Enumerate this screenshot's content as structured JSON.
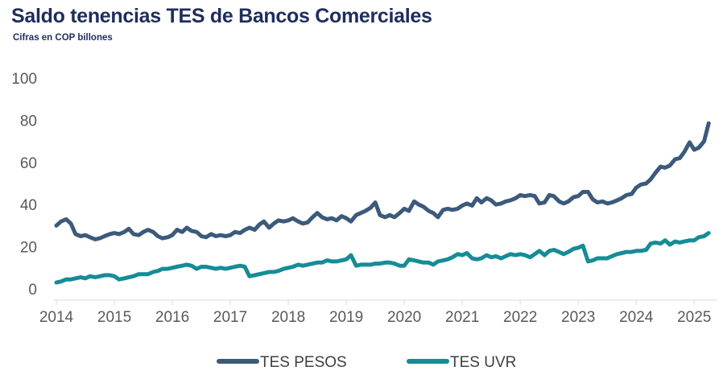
{
  "chart_data": {
    "type": "line",
    "title": "Saldo tenencias TES de Bancos Comerciales",
    "subtitle": "Cifras en COP billones",
    "xlabel": "",
    "ylabel": "",
    "ylim": [
      0,
      100
    ],
    "yticks": [
      "0",
      "20",
      "40",
      "60",
      "80",
      "100"
    ],
    "xlim": [
      2014,
      2025.33
    ],
    "xticks": [
      "2014",
      "2015",
      "2016",
      "2017",
      "2018",
      "2019",
      "2020",
      "2021",
      "2022",
      "2023",
      "2024",
      "2025"
    ],
    "grid": false,
    "legend_position": "bottom",
    "series": [
      {
        "name": "TES PESOS",
        "color": "#3c5a7a",
        "points": [
          [
            2014.0,
            30
          ],
          [
            2014.08,
            32
          ],
          [
            2014.17,
            33
          ],
          [
            2014.25,
            31
          ],
          [
            2014.33,
            26
          ],
          [
            2014.42,
            25
          ],
          [
            2014.5,
            25.5
          ],
          [
            2014.58,
            24.5
          ],
          [
            2014.67,
            23.5
          ],
          [
            2014.75,
            24
          ],
          [
            2014.83,
            25
          ],
          [
            2014.92,
            26
          ],
          [
            2015.0,
            26.5
          ],
          [
            2015.08,
            26
          ],
          [
            2015.17,
            27
          ],
          [
            2015.25,
            28.5
          ],
          [
            2015.33,
            26
          ],
          [
            2015.42,
            25.5
          ],
          [
            2015.5,
            27
          ],
          [
            2015.58,
            28
          ],
          [
            2015.67,
            27
          ],
          [
            2015.75,
            25
          ],
          [
            2015.83,
            24
          ],
          [
            2015.92,
            24.5
          ],
          [
            2016.0,
            25.5
          ],
          [
            2016.08,
            28
          ],
          [
            2016.17,
            27
          ],
          [
            2016.25,
            29
          ],
          [
            2016.33,
            27.5
          ],
          [
            2016.42,
            27
          ],
          [
            2016.5,
            25
          ],
          [
            2016.58,
            24.5
          ],
          [
            2016.67,
            26
          ],
          [
            2016.75,
            25
          ],
          [
            2016.83,
            25.5
          ],
          [
            2016.92,
            25
          ],
          [
            2017.0,
            25.5
          ],
          [
            2017.08,
            27
          ],
          [
            2017.17,
            26.5
          ],
          [
            2017.25,
            28
          ],
          [
            2017.33,
            29
          ],
          [
            2017.42,
            28
          ],
          [
            2017.5,
            30.5
          ],
          [
            2017.58,
            32
          ],
          [
            2017.67,
            29
          ],
          [
            2017.75,
            31
          ],
          [
            2017.83,
            32.5
          ],
          [
            2017.92,
            32
          ],
          [
            2018.0,
            32.5
          ],
          [
            2018.08,
            33.5
          ],
          [
            2018.17,
            32
          ],
          [
            2018.25,
            31
          ],
          [
            2018.33,
            31.5
          ],
          [
            2018.42,
            34
          ],
          [
            2018.5,
            36
          ],
          [
            2018.58,
            34
          ],
          [
            2018.67,
            33
          ],
          [
            2018.75,
            33.5
          ],
          [
            2018.83,
            32.5
          ],
          [
            2018.92,
            34.5
          ],
          [
            2019.0,
            33.5
          ],
          [
            2019.08,
            32
          ],
          [
            2019.17,
            35
          ],
          [
            2019.25,
            36
          ],
          [
            2019.33,
            37
          ],
          [
            2019.42,
            38.5
          ],
          [
            2019.5,
            41
          ],
          [
            2019.58,
            35
          ],
          [
            2019.67,
            34
          ],
          [
            2019.75,
            35
          ],
          [
            2019.83,
            34
          ],
          [
            2019.92,
            36
          ],
          [
            2020.0,
            38
          ],
          [
            2020.08,
            37
          ],
          [
            2020.17,
            41.5
          ],
          [
            2020.25,
            40
          ],
          [
            2020.33,
            39
          ],
          [
            2020.42,
            37
          ],
          [
            2020.5,
            36
          ],
          [
            2020.58,
            34
          ],
          [
            2020.67,
            37.5
          ],
          [
            2020.75,
            38
          ],
          [
            2020.83,
            37.5
          ],
          [
            2020.92,
            38
          ],
          [
            2021.0,
            39.5
          ],
          [
            2021.08,
            40.5
          ],
          [
            2021.17,
            39.5
          ],
          [
            2021.25,
            43
          ],
          [
            2021.33,
            41
          ],
          [
            2021.42,
            43
          ],
          [
            2021.5,
            42
          ],
          [
            2021.58,
            40
          ],
          [
            2021.67,
            40.5
          ],
          [
            2021.75,
            41.5
          ],
          [
            2021.83,
            42
          ],
          [
            2021.92,
            43
          ],
          [
            2022.0,
            44.5
          ],
          [
            2022.08,
            44
          ],
          [
            2022.17,
            44.5
          ],
          [
            2022.25,
            44
          ],
          [
            2022.33,
            40.5
          ],
          [
            2022.42,
            41
          ],
          [
            2022.5,
            44.5
          ],
          [
            2022.58,
            44
          ],
          [
            2022.67,
            41.5
          ],
          [
            2022.75,
            40.5
          ],
          [
            2022.83,
            41.5
          ],
          [
            2022.92,
            43.5
          ],
          [
            2023.0,
            44
          ],
          [
            2023.08,
            46
          ],
          [
            2023.17,
            46
          ],
          [
            2023.25,
            42.5
          ],
          [
            2023.33,
            41
          ],
          [
            2023.42,
            41.5
          ],
          [
            2023.5,
            40.5
          ],
          [
            2023.58,
            41
          ],
          [
            2023.67,
            42
          ],
          [
            2023.75,
            43
          ],
          [
            2023.83,
            44.5
          ],
          [
            2023.92,
            45
          ],
          [
            2024.0,
            48
          ],
          [
            2024.08,
            49.5
          ],
          [
            2024.17,
            50
          ],
          [
            2024.25,
            52
          ],
          [
            2024.33,
            55
          ],
          [
            2024.42,
            58
          ],
          [
            2024.5,
            57.5
          ],
          [
            2024.58,
            58.5
          ],
          [
            2024.67,
            61.5
          ],
          [
            2024.75,
            62
          ],
          [
            2024.83,
            65
          ],
          [
            2024.92,
            69.5
          ],
          [
            2025.0,
            66
          ],
          [
            2025.08,
            67
          ],
          [
            2025.17,
            70
          ],
          [
            2025.25,
            78.5
          ]
        ]
      },
      {
        "name": "TES UVR",
        "color": "#168c96",
        "points": [
          [
            2014.0,
            3
          ],
          [
            2014.08,
            3.5
          ],
          [
            2014.17,
            4.5
          ],
          [
            2014.25,
            4.5
          ],
          [
            2014.33,
            5
          ],
          [
            2014.42,
            5.5
          ],
          [
            2014.5,
            5
          ],
          [
            2014.58,
            6
          ],
          [
            2014.67,
            5.5
          ],
          [
            2014.75,
            6
          ],
          [
            2014.83,
            6.5
          ],
          [
            2014.92,
            6.5
          ],
          [
            2015.0,
            6
          ],
          [
            2015.08,
            4.5
          ],
          [
            2015.17,
            5
          ],
          [
            2015.25,
            5.5
          ],
          [
            2015.33,
            6
          ],
          [
            2015.42,
            7
          ],
          [
            2015.5,
            7
          ],
          [
            2015.58,
            7
          ],
          [
            2015.67,
            8
          ],
          [
            2015.75,
            8.5
          ],
          [
            2015.83,
            9.5
          ],
          [
            2015.92,
            9.5
          ],
          [
            2016.0,
            10
          ],
          [
            2016.08,
            10.5
          ],
          [
            2016.17,
            11
          ],
          [
            2016.25,
            11.5
          ],
          [
            2016.33,
            11
          ],
          [
            2016.42,
            9.5
          ],
          [
            2016.5,
            10.5
          ],
          [
            2016.58,
            10.5
          ],
          [
            2016.67,
            10
          ],
          [
            2016.75,
            9.5
          ],
          [
            2016.83,
            10
          ],
          [
            2016.92,
            9.5
          ],
          [
            2017.0,
            10
          ],
          [
            2017.08,
            10.5
          ],
          [
            2017.17,
            11
          ],
          [
            2017.25,
            10.5
          ],
          [
            2017.33,
            6
          ],
          [
            2017.42,
            6.5
          ],
          [
            2017.5,
            7
          ],
          [
            2017.58,
            7.5
          ],
          [
            2017.67,
            8
          ],
          [
            2017.75,
            8
          ],
          [
            2017.83,
            8.5
          ],
          [
            2017.92,
            9.5
          ],
          [
            2018.0,
            10
          ],
          [
            2018.08,
            10.5
          ],
          [
            2018.17,
            11.5
          ],
          [
            2018.25,
            11
          ],
          [
            2018.33,
            11.5
          ],
          [
            2018.42,
            12
          ],
          [
            2018.5,
            12.5
          ],
          [
            2018.58,
            12.5
          ],
          [
            2018.67,
            13.5
          ],
          [
            2018.75,
            13
          ],
          [
            2018.83,
            13
          ],
          [
            2018.92,
            13.5
          ],
          [
            2019.0,
            14
          ],
          [
            2019.08,
            16
          ],
          [
            2019.17,
            11
          ],
          [
            2019.25,
            11.5
          ],
          [
            2019.33,
            11.5
          ],
          [
            2019.42,
            11.5
          ],
          [
            2019.5,
            12
          ],
          [
            2019.58,
            12
          ],
          [
            2019.67,
            12.5
          ],
          [
            2019.75,
            12.5
          ],
          [
            2019.83,
            12
          ],
          [
            2019.92,
            11
          ],
          [
            2020.0,
            11
          ],
          [
            2020.08,
            14
          ],
          [
            2020.17,
            13.5
          ],
          [
            2020.25,
            13
          ],
          [
            2020.33,
            12.5
          ],
          [
            2020.42,
            12.5
          ],
          [
            2020.5,
            11.5
          ],
          [
            2020.58,
            13
          ],
          [
            2020.67,
            13.5
          ],
          [
            2020.75,
            14
          ],
          [
            2020.83,
            15
          ],
          [
            2020.92,
            16.5
          ],
          [
            2021.0,
            16
          ],
          [
            2021.08,
            17
          ],
          [
            2021.17,
            14.5
          ],
          [
            2021.25,
            14
          ],
          [
            2021.33,
            14.5
          ],
          [
            2021.42,
            16
          ],
          [
            2021.5,
            15
          ],
          [
            2021.58,
            15.5
          ],
          [
            2021.67,
            14.5
          ],
          [
            2021.75,
            15.5
          ],
          [
            2021.83,
            16.5
          ],
          [
            2021.92,
            16
          ],
          [
            2022.0,
            16.5
          ],
          [
            2022.08,
            16
          ],
          [
            2022.17,
            15
          ],
          [
            2022.25,
            16.5
          ],
          [
            2022.33,
            18
          ],
          [
            2022.42,
            16
          ],
          [
            2022.5,
            18
          ],
          [
            2022.58,
            18.5
          ],
          [
            2022.67,
            17.5
          ],
          [
            2022.75,
            16.5
          ],
          [
            2022.83,
            17.5
          ],
          [
            2022.92,
            19
          ],
          [
            2023.0,
            19.5
          ],
          [
            2023.08,
            20.5
          ],
          [
            2023.17,
            13
          ],
          [
            2023.25,
            13.5
          ],
          [
            2023.33,
            14.5
          ],
          [
            2023.42,
            14.5
          ],
          [
            2023.5,
            14.5
          ],
          [
            2023.58,
            15.5
          ],
          [
            2023.67,
            16.5
          ],
          [
            2023.75,
            17
          ],
          [
            2023.83,
            17.5
          ],
          [
            2023.92,
            17.5
          ],
          [
            2024.0,
            18
          ],
          [
            2024.08,
            18
          ],
          [
            2024.17,
            18.5
          ],
          [
            2024.25,
            21.5
          ],
          [
            2024.33,
            22
          ],
          [
            2024.42,
            21.5
          ],
          [
            2024.5,
            23
          ],
          [
            2024.58,
            21
          ],
          [
            2024.67,
            22.5
          ],
          [
            2024.75,
            22
          ],
          [
            2024.83,
            22.5
          ],
          [
            2024.92,
            23
          ],
          [
            2025.0,
            23
          ],
          [
            2025.08,
            24.5
          ],
          [
            2025.17,
            25
          ],
          [
            2025.25,
            26.5
          ]
        ]
      }
    ]
  }
}
